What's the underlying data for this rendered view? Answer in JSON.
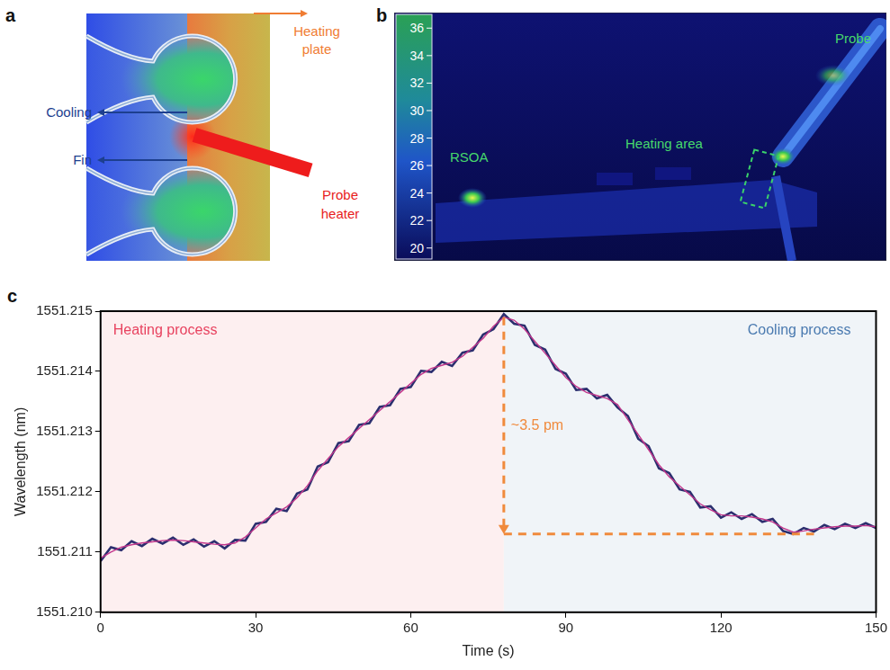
{
  "panel_a": {
    "letter": "a",
    "labels": {
      "heating_plate": "Heating plate",
      "cooling": "Cooling",
      "fin": "Fin",
      "probe_heater": "Probe heater"
    }
  },
  "panel_b": {
    "letter": "b",
    "colorbar": {
      "range": [
        19.2,
        37
      ],
      "ticks": [
        36,
        34,
        32,
        30,
        28,
        26,
        24,
        22,
        20
      ]
    },
    "labels": {
      "rsoa": "RSOA",
      "heating_area": "Heating area",
      "probe": "Probe"
    }
  },
  "chart_data": {
    "panel_label": "c",
    "type": "line",
    "xlabel": "Time (s)",
    "ylabel": "Wavelength (nm)",
    "x": [
      0,
      2,
      4,
      6,
      8,
      10,
      12,
      14,
      16,
      18,
      20,
      22,
      24,
      26,
      28,
      30,
      32,
      34,
      36,
      38,
      40,
      42,
      44,
      46,
      48,
      50,
      52,
      54,
      56,
      58,
      60,
      62,
      64,
      66,
      68,
      70,
      72,
      74,
      76,
      78,
      80,
      82,
      84,
      86,
      88,
      90,
      92,
      94,
      96,
      98,
      100,
      102,
      104,
      106,
      108,
      110,
      112,
      114,
      116,
      118,
      120,
      122,
      124,
      126,
      128,
      130,
      132,
      134,
      136,
      138,
      140,
      142,
      144,
      146,
      148,
      150
    ],
    "series": [
      {
        "color": "#2b2e6e",
        "values": [
          1551.21085,
          1551.21108,
          1551.21103,
          1551.21118,
          1551.2111,
          1551.21122,
          1551.21114,
          1551.21124,
          1551.21112,
          1551.21121,
          1551.21109,
          1551.21118,
          1551.21106,
          1551.2112,
          1551.21119,
          1551.21147,
          1551.2115,
          1551.21172,
          1551.21168,
          1551.21197,
          1551.21204,
          1551.21242,
          1551.21249,
          1551.21281,
          1551.21284,
          1551.21311,
          1551.21314,
          1551.21341,
          1551.21344,
          1551.21371,
          1551.21374,
          1551.21401,
          1551.21399,
          1551.21416,
          1551.21409,
          1551.21431,
          1551.21435,
          1551.21461,
          1551.2147,
          1551.21495,
          1551.21479,
          1551.21476,
          1551.21444,
          1551.21436,
          1551.21404,
          1551.21396,
          1551.21369,
          1551.21371,
          1551.21355,
          1551.21361,
          1551.2134,
          1551.21326,
          1551.21288,
          1551.21276,
          1551.21239,
          1551.21231,
          1551.21204,
          1551.212,
          1551.21174,
          1551.21176,
          1551.21157,
          1551.21166,
          1551.21155,
          1551.21163,
          1551.2115,
          1551.21155,
          1551.21135,
          1551.2113,
          1551.2114,
          1551.21134,
          1551.21145,
          1551.21138,
          1551.21147,
          1551.2114,
          1551.21148,
          1551.2114
        ]
      },
      {
        "color": "#c2378c",
        "values": [
          1551.2109,
          1551.211,
          1551.21108,
          1551.21112,
          1551.21115,
          1551.21117,
          1551.21119,
          1551.2112,
          1551.21119,
          1551.21117,
          1551.21115,
          1551.21113,
          1551.21112,
          1551.21115,
          1551.21125,
          1551.2114,
          1551.21155,
          1551.21165,
          1551.21175,
          1551.2119,
          1551.2121,
          1551.21235,
          1551.21255,
          1551.21275,
          1551.2129,
          1551.21305,
          1551.2132,
          1551.21335,
          1551.2135,
          1551.21365,
          1551.2138,
          1551.21395,
          1551.21405,
          1551.2141,
          1551.21415,
          1551.21425,
          1551.2144,
          1551.21455,
          1551.21475,
          1551.2149,
          1551.21485,
          1551.2147,
          1551.2145,
          1551.2143,
          1551.2141,
          1551.2139,
          1551.21375,
          1551.21365,
          1551.2136,
          1551.21355,
          1551.21345,
          1551.2132,
          1551.21295,
          1551.2127,
          1551.21245,
          1551.21225,
          1551.2121,
          1551.21195,
          1551.2118,
          1551.2117,
          1551.21162,
          1551.2116,
          1551.2116,
          1551.21158,
          1551.21155,
          1551.2115,
          1551.2114,
          1551.21133,
          1551.21135,
          1551.21138,
          1551.2114,
          1551.21142,
          1551.21143,
          1551.21143,
          1551.21144,
          1551.21142
        ]
      }
    ],
    "xlim": [
      0,
      150
    ],
    "xticks": [
      0,
      30,
      60,
      90,
      120,
      150
    ],
    "ylim": [
      1551.21,
      1551.215
    ],
    "yticks": [
      {
        "value": 1551.21,
        "label": "1551.210"
      },
      1551.211,
      1551.212,
      1551.213,
      1551.214,
      1551.215
    ],
    "grid": false,
    "regions": [
      {
        "label": "Heating process",
        "from": 0,
        "to": 78,
        "color": "#fdeff0"
      },
      {
        "label": "Cooling process",
        "from": 78,
        "to": 150,
        "color": "#f0f4f8"
      }
    ],
    "annotation": {
      "text": "~3.5 pm",
      "x": 78,
      "y_from": 1551.2149,
      "y_to": 1551.2113,
      "x_end": 138
    }
  }
}
